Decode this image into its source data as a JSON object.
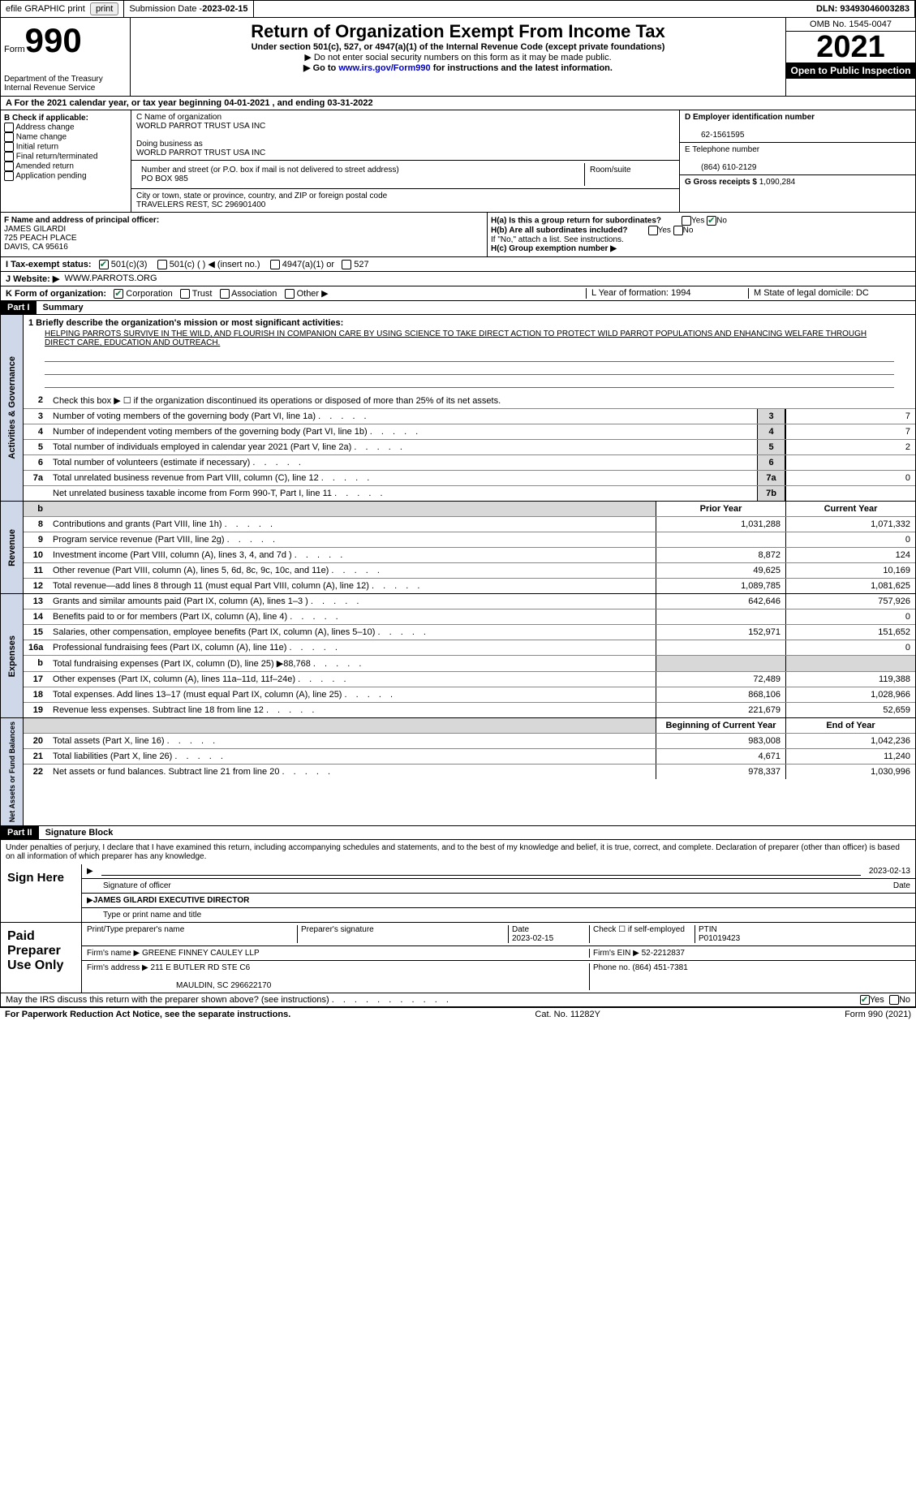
{
  "top": {
    "efile": "efile GRAPHIC print",
    "sub_label": "Submission Date - ",
    "sub_date": "2023-02-15",
    "dln_label": "DLN:",
    "dln": "93493046003283"
  },
  "header": {
    "form_word": "Form",
    "form_num": "990",
    "title": "Return of Organization Exempt From Income Tax",
    "sub1": "Under section 501(c), 527, or 4947(a)(1) of the Internal Revenue Code (except private foundations)",
    "sub2": "▶ Do not enter social security numbers on this form as it may be made public.",
    "sub3_pre": "▶ Go to ",
    "sub3_link": "www.irs.gov/Form990",
    "sub3_post": " for instructions and the latest information.",
    "dept": "Department of the Treasury\nInternal Revenue Service",
    "omb": "OMB No. 1545-0047",
    "year": "2021",
    "open": "Open to Public Inspection"
  },
  "rowA": {
    "text_pre": "A   For the 2021 calendar year, or tax year beginning ",
    "begin": "04-01-2021",
    "mid": " , and ending ",
    "end": "03-31-2022"
  },
  "colB": {
    "head": "B Check if applicable:",
    "opts": [
      "Address change",
      "Name change",
      "Initial return",
      "Final return/terminated",
      "Amended return",
      "Application pending"
    ]
  },
  "colC": {
    "name_label": "C Name of organization",
    "name": "WORLD PARROT TRUST USA INC",
    "dba_label": "Doing business as",
    "dba": "WORLD PARROT TRUST USA INC",
    "addr_label": "Number and street (or P.O. box if mail is not delivered to street address)",
    "room_label": "Room/suite",
    "addr": "PO BOX 985",
    "city_label": "City or town, state or province, country, and ZIP or foreign postal code",
    "city": "TRAVELERS REST, SC   296901400"
  },
  "colD": {
    "ein_label": "D Employer identification number",
    "ein": "62-1561595",
    "phone_label": "E Telephone number",
    "phone": "(864) 610-2129",
    "gross_label": "G Gross receipts $",
    "gross": "1,090,284"
  },
  "rowF": {
    "label": "F Name and address of principal officer:",
    "name": "JAMES GILARDI",
    "addr1": "725 PEACH PLACE",
    "addr2": "DAVIS, CA   95616"
  },
  "rowH": {
    "ha": "H(a)  Is this a group return for subordinates?",
    "hb": "H(b)  Are all subordinates included?",
    "hb_note": "If \"No,\" attach a list. See instructions.",
    "hc": "H(c)  Group exemption number ▶",
    "yes": "Yes",
    "no": "No"
  },
  "rowI": {
    "label": "I     Tax-exempt status:",
    "o1": "501(c)(3)",
    "o2": "501(c) (   ) ◀ (insert no.)",
    "o3": "4947(a)(1) or",
    "o4": "527"
  },
  "rowJ": {
    "label": "J    Website: ▶",
    "val": "WWW.PARROTS.ORG"
  },
  "rowK": {
    "label": "K Form of organization:",
    "opts": [
      "Corporation",
      "Trust",
      "Association",
      "Other ▶"
    ],
    "L": "L Year of formation: 1994",
    "M": "M State of legal domicile: DC"
  },
  "part1": {
    "bar": "Part I",
    "title": "Summary"
  },
  "summary": {
    "q1_label": "1   Briefly describe the organization's mission or most significant activities:",
    "q1": "HELPING PARROTS SURVIVE IN THE WILD, AND FLOURISH IN COMPANION CARE BY USING SCIENCE TO TAKE DIRECT ACTION TO PROTECT WILD PARROT POPULATIONS AND ENHANCING WELFARE THROUGH DIRECT CARE, EDUCATION AND OUTREACH.",
    "q2": "Check this box ▶ ☐  if the organization discontinued its operations or disposed of more than 25% of its net assets.",
    "lines": [
      {
        "n": "3",
        "d": "Number of voting members of the governing body (Part VI, line 1a)",
        "box": "3",
        "v": "7"
      },
      {
        "n": "4",
        "d": "Number of independent voting members of the governing body (Part VI, line 1b)",
        "box": "4",
        "v": "7"
      },
      {
        "n": "5",
        "d": "Total number of individuals employed in calendar year 2021 (Part V, line 2a)",
        "box": "5",
        "v": "2"
      },
      {
        "n": "6",
        "d": "Total number of volunteers (estimate if necessary)",
        "box": "6",
        "v": ""
      },
      {
        "n": "7a",
        "d": "Total unrelated business revenue from Part VIII, column (C), line 12",
        "box": "7a",
        "v": "0"
      },
      {
        "n": "",
        "d": "Net unrelated business taxable income from Form 990-T, Part I, line 11",
        "box": "7b",
        "v": ""
      }
    ]
  },
  "revenue": {
    "side": "Activities & Governance",
    "side2": "Revenue",
    "side3": "Expenses",
    "side4": "Net Assets or Fund Balances",
    "header_prior": "Prior Year",
    "header_curr": "Current Year",
    "lines": [
      {
        "n": "8",
        "d": "Contributions and grants (Part VIII, line 1h)",
        "p": "1,031,288",
        "c": "1,071,332"
      },
      {
        "n": "9",
        "d": "Program service revenue (Part VIII, line 2g)",
        "p": "",
        "c": "0"
      },
      {
        "n": "10",
        "d": "Investment income (Part VIII, column (A), lines 3, 4, and 7d )",
        "p": "8,872",
        "c": "124"
      },
      {
        "n": "11",
        "d": "Other revenue (Part VIII, column (A), lines 5, 6d, 8c, 9c, 10c, and 11e)",
        "p": "49,625",
        "c": "10,169"
      },
      {
        "n": "12",
        "d": "Total revenue—add lines 8 through 11 (must equal Part VIII, column (A), line 12)",
        "p": "1,089,785",
        "c": "1,081,625"
      }
    ]
  },
  "expenses": {
    "lines": [
      {
        "n": "13",
        "d": "Grants and similar amounts paid (Part IX, column (A), lines 1–3 )",
        "p": "642,646",
        "c": "757,926"
      },
      {
        "n": "14",
        "d": "Benefits paid to or for members (Part IX, column (A), line 4)",
        "p": "",
        "c": "0"
      },
      {
        "n": "15",
        "d": "Salaries, other compensation, employee benefits (Part IX, column (A), lines 5–10)",
        "p": "152,971",
        "c": "151,652"
      },
      {
        "n": "16a",
        "d": "Professional fundraising fees (Part IX, column (A), line 11e)",
        "p": "",
        "c": "0"
      },
      {
        "n": "b",
        "d": "Total fundraising expenses (Part IX, column (D), line 25) ▶88,768",
        "p": "SHADE",
        "c": "SHADE"
      },
      {
        "n": "17",
        "d": "Other expenses (Part IX, column (A), lines 11a–11d, 11f–24e)",
        "p": "72,489",
        "c": "119,388"
      },
      {
        "n": "18",
        "d": "Total expenses. Add lines 13–17 (must equal Part IX, column (A), line 25)",
        "p": "868,106",
        "c": "1,028,966"
      },
      {
        "n": "19",
        "d": "Revenue less expenses. Subtract line 18 from line 12",
        "p": "221,679",
        "c": "52,659"
      }
    ]
  },
  "netassets": {
    "header_begin": "Beginning of Current Year",
    "header_end": "End of Year",
    "lines": [
      {
        "n": "20",
        "d": "Total assets (Part X, line 16)",
        "p": "983,008",
        "c": "1,042,236"
      },
      {
        "n": "21",
        "d": "Total liabilities (Part X, line 26)",
        "p": "4,671",
        "c": "11,240"
      },
      {
        "n": "22",
        "d": "Net assets or fund balances. Subtract line 21 from line 20",
        "p": "978,337",
        "c": "1,030,996"
      }
    ]
  },
  "part2": {
    "bar": "Part II",
    "title": "Signature Block"
  },
  "sig": {
    "decl": "Under penalties of perjury, I declare that I have examined this return, including accompanying schedules and statements, and to the best of my knowledge and belief, it is true, correct, and complete. Declaration of preparer (other than officer) is based on all information of which preparer has any knowledge.",
    "sign_here": "Sign Here",
    "sig_officer": "Signature of officer",
    "sig_date": "2023-02-13",
    "date_label": "Date",
    "name": "JAMES GILARDI  EXECUTIVE DIRECTOR",
    "name_label": "Type or print name and title",
    "paid": "Paid Preparer Use Only",
    "p_name_label": "Print/Type preparer's name",
    "p_sig_label": "Preparer's signature",
    "p_date_label": "Date",
    "p_date": "2023-02-15",
    "p_self": "Check ☐ if self-employed",
    "ptin_label": "PTIN",
    "ptin": "P01019423",
    "firm_name_label": "Firm's name      ▶",
    "firm_name": "GREENE FINNEY CAULEY LLP",
    "firm_ein_label": "Firm's EIN ▶",
    "firm_ein": "52-2212837",
    "firm_addr_label": "Firm's address ▶",
    "firm_addr": "211 E BUTLER RD STE C6",
    "firm_city": "MAULDIN, SC   296622170",
    "firm_phone_label": "Phone no.",
    "firm_phone": "(864) 451-7381",
    "may_irs": "May the IRS discuss this return with the preparer shown above? (see instructions)"
  },
  "footer": {
    "left": "For Paperwork Reduction Act Notice, see the separate instructions.",
    "mid": "Cat. No. 11282Y",
    "right": "Form 990 (2021)"
  }
}
